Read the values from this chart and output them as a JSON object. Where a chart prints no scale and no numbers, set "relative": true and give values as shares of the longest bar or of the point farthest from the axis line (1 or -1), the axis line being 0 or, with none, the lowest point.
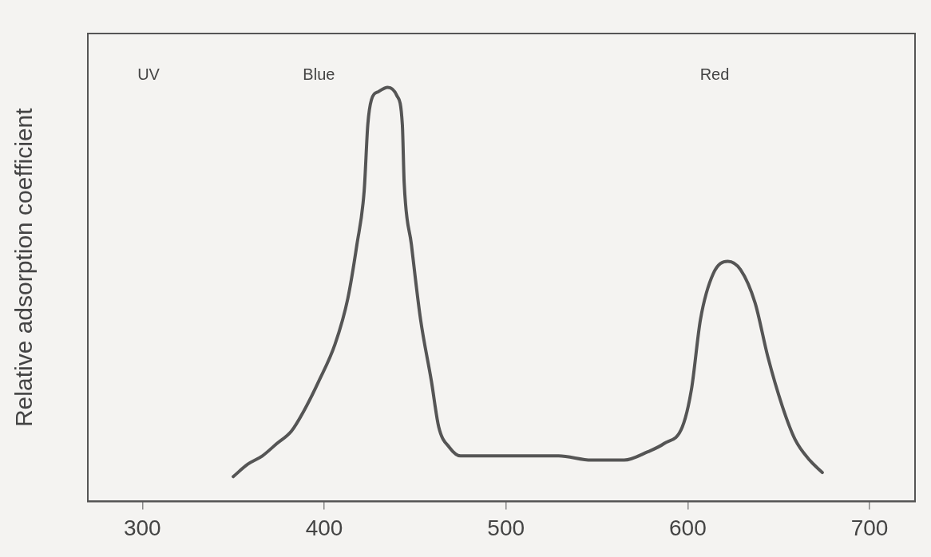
{
  "chart_data": {
    "type": "line",
    "relative": true,
    "ylabel": "Relative adsorption coefficient",
    "annotations": [
      "UV",
      "Blue",
      "Red"
    ],
    "xlim": [
      270,
      725
    ],
    "xticks": [
      300,
      400,
      500,
      600,
      700
    ],
    "grid": false,
    "legend": false,
    "marker": "none",
    "line_style": "solid",
    "series": [
      {
        "color": "#555555",
        "x": [
          350,
          358,
          366,
          374,
          382,
          389,
          397,
          406,
          413,
          418,
          422,
          424,
          426,
          430,
          435,
          440,
          443,
          444,
          448,
          453,
          459,
          463,
          469,
          475,
          487,
          510,
          529,
          547,
          565,
          578,
          587,
          597,
          602,
          607,
          614,
          622,
          629,
          637,
          644,
          652,
          659,
          667,
          674
        ],
        "values": [
          0.06,
          0.09,
          0.11,
          0.14,
          0.17,
          0.22,
          0.29,
          0.38,
          0.49,
          0.62,
          0.75,
          0.91,
          0.97,
          0.99,
          1.0,
          0.98,
          0.91,
          0.77,
          0.62,
          0.44,
          0.29,
          0.18,
          0.13,
          0.11,
          0.11,
          0.11,
          0.11,
          0.1,
          0.1,
          0.12,
          0.14,
          0.18,
          0.27,
          0.44,
          0.55,
          0.58,
          0.56,
          0.48,
          0.35,
          0.23,
          0.15,
          0.1,
          0.07
        ]
      }
    ]
  }
}
